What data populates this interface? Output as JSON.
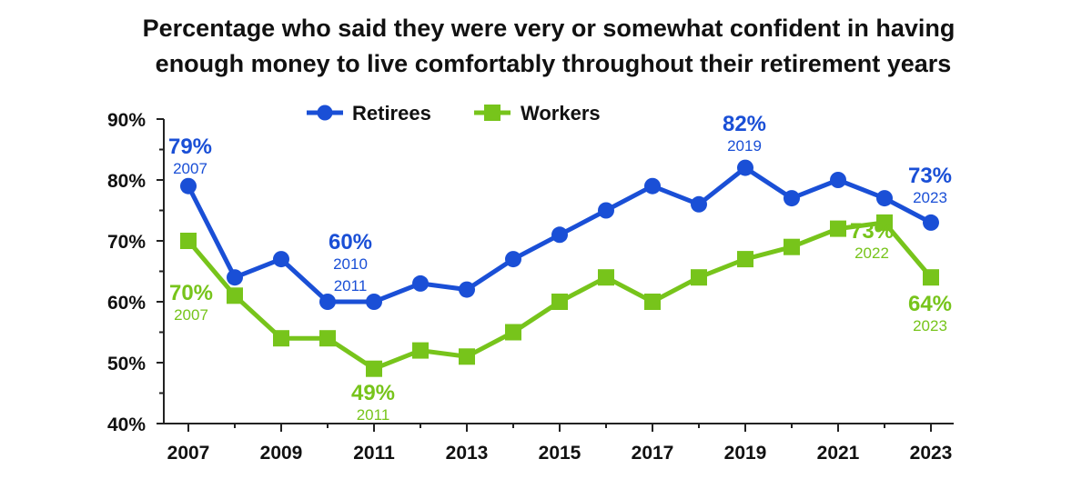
{
  "chart_data": {
    "type": "line",
    "title_lines": [
      "Percentage who said they were very or somewhat confident in having",
      "enough money to live comfortably throughout their retirement years"
    ],
    "x": [
      2007,
      2008,
      2009,
      2010,
      2011,
      2012,
      2013,
      2014,
      2015,
      2016,
      2017,
      2018,
      2019,
      2020,
      2021,
      2022,
      2023
    ],
    "x_tick_labels": [
      "2007",
      "2009",
      "2011",
      "2013",
      "2015",
      "2017",
      "2019",
      "2021",
      "2023"
    ],
    "y_tick_labels": [
      "90%",
      "80%",
      "70%",
      "60%",
      "50%",
      "40%"
    ],
    "ylim": [
      40,
      90
    ],
    "legend_position": "top-center",
    "series": [
      {
        "name": "Retirees",
        "color": "#1a4fd6",
        "marker": "circle",
        "values": [
          79,
          64,
          67,
          60,
          60,
          63,
          62,
          67,
          71,
          75,
          79,
          76,
          82,
          77,
          80,
          77,
          73
        ]
      },
      {
        "name": "Workers",
        "color": "#77c41b",
        "marker": "square",
        "values": [
          70,
          61,
          54,
          54,
          49,
          52,
          51,
          55,
          60,
          64,
          60,
          64,
          67,
          69,
          72,
          73,
          64
        ]
      }
    ],
    "annotations": [
      {
        "series": 0,
        "value": "79%",
        "years": [
          "2007"
        ]
      },
      {
        "series": 0,
        "value": "60%",
        "years": [
          "2010",
          "2011"
        ]
      },
      {
        "series": 0,
        "value": "82%",
        "years": [
          "2019"
        ]
      },
      {
        "series": 0,
        "value": "73%",
        "years": [
          "2023"
        ]
      },
      {
        "series": 1,
        "value": "70%",
        "years": [
          "2007"
        ]
      },
      {
        "series": 1,
        "value": "49%",
        "years": [
          "2011"
        ]
      },
      {
        "series": 1,
        "value": "73%",
        "years": [
          "2022"
        ]
      },
      {
        "series": 1,
        "value": "64%",
        "years": [
          "2023"
        ]
      }
    ]
  }
}
